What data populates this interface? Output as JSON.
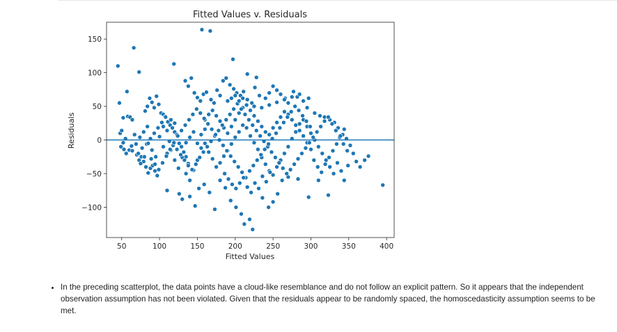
{
  "chart_data": {
    "type": "scatter",
    "title": "Fitted Values v. Residuals",
    "xlabel": "Fitted Values",
    "ylabel": "Residuals",
    "xlim": [
      30,
      410
    ],
    "ylim": [
      -145,
      175
    ],
    "xticks": [
      50,
      100,
      150,
      200,
      250,
      300,
      350,
      400
    ],
    "yticks": [
      -100,
      -50,
      0,
      50,
      100,
      150
    ],
    "xtick_labels": [
      "50",
      "100",
      "150",
      "200",
      "250",
      "300",
      "350",
      "400"
    ],
    "ytick_labels": [
      "−100",
      "−50",
      "0",
      "50",
      "100",
      "150"
    ],
    "reference_line_y": 0,
    "grid": false,
    "point_color": "#1f77b4",
    "line_color": "#1f77b4",
    "points": [
      [
        45,
        110
      ],
      [
        66,
        137
      ],
      [
        73,
        101
      ],
      [
        119,
        113
      ],
      [
        156,
        164
      ],
      [
        167,
        162
      ],
      [
        197,
        120
      ],
      [
        216,
        98
      ],
      [
        228,
        93
      ],
      [
        47,
        55
      ],
      [
        57,
        72
      ],
      [
        48,
        10
      ],
      [
        50,
        14
      ],
      [
        52,
        -4
      ],
      [
        55,
        2
      ],
      [
        49,
        -10
      ],
      [
        53,
        -14
      ],
      [
        56,
        -20
      ],
      [
        60,
        -15
      ],
      [
        63,
        -9
      ],
      [
        58,
        35
      ],
      [
        61,
        34
      ],
      [
        64,
        30
      ],
      [
        52,
        33
      ],
      [
        67,
        8
      ],
      [
        70,
        -22
      ],
      [
        73,
        -30
      ],
      [
        76,
        -25
      ],
      [
        79,
        -32
      ],
      [
        82,
        -40
      ],
      [
        85,
        -49
      ],
      [
        88,
        -42
      ],
      [
        91,
        -38
      ],
      [
        94,
        -46
      ],
      [
        97,
        -53
      ],
      [
        81,
        43
      ],
      [
        84,
        50
      ],
      [
        87,
        62
      ],
      [
        90,
        56
      ],
      [
        93,
        48
      ],
      [
        96,
        65
      ],
      [
        99,
        53
      ],
      [
        102,
        40
      ],
      [
        105,
        38
      ],
      [
        108,
        35
      ],
      [
        111,
        27
      ],
      [
        114,
        22
      ],
      [
        117,
        18
      ],
      [
        120,
        12
      ],
      [
        123,
        8
      ],
      [
        126,
        -5
      ],
      [
        129,
        -10
      ],
      [
        132,
        -18
      ],
      [
        135,
        -25
      ],
      [
        138,
        -35
      ],
      [
        110,
        -75
      ],
      [
        126,
        -80
      ],
      [
        130,
        -88
      ],
      [
        140,
        -84
      ],
      [
        147,
        -98
      ],
      [
        152,
        -72
      ],
      [
        159,
        -66
      ],
      [
        166,
        -78
      ],
      [
        173,
        -103
      ],
      [
        180,
        -60
      ],
      [
        187,
        -71
      ],
      [
        194,
        -90
      ],
      [
        201,
        -100
      ],
      [
        208,
        -110
      ],
      [
        212,
        -125
      ],
      [
        219,
        -118
      ],
      [
        223,
        -133
      ],
      [
        236,
        -86
      ],
      [
        244,
        -100
      ],
      [
        250,
        -92
      ],
      [
        256,
        -80
      ],
      [
        262,
        -60
      ],
      [
        270,
        -55
      ],
      [
        283,
        -58
      ],
      [
        297,
        -85
      ],
      [
        310,
        -60
      ],
      [
        323,
        -82
      ],
      [
        134,
        88
      ],
      [
        138,
        80
      ],
      [
        142,
        92
      ],
      [
        146,
        70
      ],
      [
        150,
        63
      ],
      [
        154,
        58
      ],
      [
        158,
        68
      ],
      [
        162,
        71
      ],
      [
        168,
        60
      ],
      [
        172,
        55
      ],
      [
        176,
        74
      ],
      [
        180,
        66
      ],
      [
        184,
        88
      ],
      [
        188,
        92
      ],
      [
        193,
        82
      ],
      [
        198,
        76
      ],
      [
        202,
        70
      ],
      [
        207,
        66
      ],
      [
        211,
        72
      ],
      [
        216,
        60
      ],
      [
        222,
        55
      ],
      [
        226,
        78
      ],
      [
        232,
        66
      ],
      [
        240,
        62
      ],
      [
        245,
        70
      ],
      [
        250,
        80
      ],
      [
        255,
        74
      ],
      [
        260,
        68
      ],
      [
        266,
        62
      ],
      [
        270,
        55
      ],
      [
        277,
        72
      ],
      [
        282,
        64
      ],
      [
        290,
        58
      ],
      [
        297,
        62
      ],
      [
        305,
        40
      ],
      [
        312,
        36
      ],
      [
        318,
        34
      ],
      [
        325,
        30
      ],
      [
        331,
        26
      ],
      [
        336,
        18
      ],
      [
        342,
        8
      ],
      [
        347,
        2
      ],
      [
        352,
        -8
      ],
      [
        356,
        -20
      ],
      [
        360,
        -32
      ],
      [
        365,
        -40
      ],
      [
        371,
        -30
      ],
      [
        376,
        -24
      ],
      [
        340,
        -46
      ],
      [
        344,
        -60
      ],
      [
        395,
        -67
      ],
      [
        100,
        5
      ],
      [
        105,
        -10
      ],
      [
        110,
        -20
      ],
      [
        115,
        -15
      ],
      [
        120,
        -30
      ],
      [
        125,
        -42
      ],
      [
        130,
        -26
      ],
      [
        135,
        -50
      ],
      [
        140,
        -60
      ],
      [
        145,
        -45
      ],
      [
        150,
        -30
      ],
      [
        155,
        -12
      ],
      [
        160,
        -5
      ],
      [
        165,
        -18
      ],
      [
        170,
        -28
      ],
      [
        175,
        -40
      ],
      [
        180,
        -34
      ],
      [
        185,
        -24
      ],
      [
        190,
        -16
      ],
      [
        195,
        -6
      ],
      [
        200,
        4
      ],
      [
        205,
        12
      ],
      [
        210,
        22
      ],
      [
        215,
        18
      ],
      [
        220,
        6
      ],
      [
        225,
        -4
      ],
      [
        230,
        -14
      ],
      [
        235,
        -26
      ],
      [
        240,
        -36
      ],
      [
        245,
        -46
      ],
      [
        250,
        -52
      ],
      [
        255,
        -40
      ],
      [
        260,
        -30
      ],
      [
        265,
        -20
      ],
      [
        270,
        -10
      ],
      [
        275,
        2
      ],
      [
        280,
        12
      ],
      [
        285,
        24
      ],
      [
        290,
        30
      ],
      [
        295,
        20
      ],
      [
        300,
        10
      ],
      [
        305,
        0
      ],
      [
        310,
        -10
      ],
      [
        315,
        -20
      ],
      [
        320,
        -30
      ],
      [
        325,
        -40
      ],
      [
        330,
        -50
      ],
      [
        335,
        -34
      ],
      [
        160,
        30
      ],
      [
        165,
        38
      ],
      [
        170,
        44
      ],
      [
        175,
        36
      ],
      [
        180,
        28
      ],
      [
        185,
        18
      ],
      [
        190,
        10
      ],
      [
        195,
        20
      ],
      [
        200,
        30
      ],
      [
        205,
        40
      ],
      [
        210,
        48
      ],
      [
        215,
        52
      ],
      [
        220,
        44
      ],
      [
        225,
        36
      ],
      [
        230,
        28
      ],
      [
        235,
        20
      ],
      [
        240,
        12
      ],
      [
        245,
        8
      ],
      [
        250,
        18
      ],
      [
        255,
        26
      ],
      [
        260,
        34
      ],
      [
        265,
        42
      ],
      [
        270,
        38
      ],
      [
        275,
        30
      ],
      [
        280,
        22
      ],
      [
        285,
        14
      ],
      [
        290,
        6
      ],
      [
        295,
        -4
      ],
      [
        300,
        -14
      ],
      [
        72,
        -20
      ],
      [
        77,
        -12
      ],
      [
        83,
        -6
      ],
      [
        88,
        2
      ],
      [
        93,
        10
      ],
      [
        98,
        18
      ],
      [
        103,
        26
      ],
      [
        108,
        34
      ],
      [
        113,
        -2
      ],
      [
        118,
        -8
      ],
      [
        123,
        -14
      ],
      [
        128,
        -22
      ],
      [
        133,
        -30
      ],
      [
        138,
        -38
      ],
      [
        143,
        -44
      ],
      [
        148,
        -36
      ],
      [
        153,
        -26
      ],
      [
        158,
        -18
      ],
      [
        163,
        -10
      ],
      [
        168,
        -2
      ],
      [
        173,
        6
      ],
      [
        178,
        14
      ],
      [
        183,
        22
      ],
      [
        188,
        30
      ],
      [
        193,
        38
      ],
      [
        198,
        46
      ],
      [
        203,
        54
      ],
      [
        208,
        46
      ],
      [
        213,
        38
      ],
      [
        218,
        30
      ],
      [
        223,
        22
      ],
      [
        228,
        14
      ],
      [
        233,
        6
      ],
      [
        238,
        -2
      ],
      [
        243,
        -10
      ],
      [
        248,
        -18
      ],
      [
        253,
        -26
      ],
      [
        258,
        -34
      ],
      [
        263,
        -42
      ],
      [
        268,
        -50
      ],
      [
        273,
        -44
      ],
      [
        278,
        -36
      ],
      [
        283,
        -28
      ],
      [
        288,
        -20
      ],
      [
        293,
        -12
      ],
      [
        298,
        -4
      ],
      [
        303,
        4
      ],
      [
        308,
        12
      ],
      [
        313,
        20
      ],
      [
        318,
        28
      ],
      [
        323,
        34
      ],
      [
        328,
        24
      ],
      [
        333,
        14
      ],
      [
        338,
        4
      ],
      [
        343,
        -6
      ],
      [
        348,
        -16
      ],
      [
        64,
        -16
      ],
      [
        69,
        -6
      ],
      [
        74,
        4
      ],
      [
        79,
        12
      ],
      [
        84,
        20
      ],
      [
        89,
        -28
      ],
      [
        94,
        -36
      ],
      [
        99,
        -44
      ],
      [
        104,
        -34
      ],
      [
        109,
        -24
      ],
      [
        114,
        -14
      ],
      [
        119,
        -4
      ],
      [
        124,
        6
      ],
      [
        129,
        14
      ],
      [
        134,
        22
      ],
      [
        139,
        30
      ],
      [
        144,
        38
      ],
      [
        149,
        46
      ],
      [
        154,
        40
      ],
      [
        159,
        32
      ],
      [
        164,
        24
      ],
      [
        169,
        16
      ],
      [
        174,
        8
      ],
      [
        179,
        0
      ],
      [
        184,
        -8
      ],
      [
        189,
        -16
      ],
      [
        194,
        -24
      ],
      [
        199,
        -32
      ],
      [
        204,
        -40
      ],
      [
        209,
        -48
      ],
      [
        214,
        -56
      ],
      [
        219,
        -46
      ],
      [
        224,
        -38
      ],
      [
        229,
        -30
      ],
      [
        234,
        -22
      ],
      [
        239,
        -14
      ],
      [
        244,
        -6
      ],
      [
        249,
        2
      ],
      [
        254,
        10
      ],
      [
        259,
        18
      ],
      [
        264,
        26
      ],
      [
        269,
        34
      ],
      [
        274,
        42
      ],
      [
        279,
        50
      ],
      [
        284,
        44
      ],
      [
        289,
        36
      ],
      [
        294,
        28
      ],
      [
        299,
        20
      ],
      [
        304,
        -30
      ],
      [
        309,
        -40
      ],
      [
        314,
        -48
      ],
      [
        319,
        -36
      ],
      [
        324,
        -26
      ],
      [
        329,
        -16
      ],
      [
        334,
        -6
      ],
      [
        339,
        6
      ],
      [
        344,
        16
      ],
      [
        349,
        -38
      ],
      [
        190,
        58
      ],
      [
        195,
        62
      ],
      [
        200,
        66
      ],
      [
        205,
        58
      ],
      [
        210,
        62
      ],
      [
        225,
        50
      ],
      [
        235,
        48
      ],
      [
        245,
        52
      ],
      [
        255,
        56
      ],
      [
        265,
        60
      ],
      [
        275,
        64
      ],
      [
        285,
        68
      ],
      [
        295,
        48
      ],
      [
        186,
        -50
      ],
      [
        191,
        -58
      ],
      [
        196,
        -66
      ],
      [
        201,
        -72
      ],
      [
        206,
        -64
      ],
      [
        211,
        -56
      ],
      [
        216,
        -70
      ],
      [
        221,
        -78
      ],
      [
        226,
        -64
      ],
      [
        231,
        -72
      ],
      [
        236,
        -54
      ],
      [
        241,
        -62
      ],
      [
        246,
        -48
      ],
      [
        150,
        -5
      ],
      [
        155,
        8
      ],
      [
        160,
        16
      ],
      [
        145,
        12
      ],
      [
        140,
        4
      ],
      [
        135,
        -4
      ],
      [
        120,
        25
      ],
      [
        115,
        30
      ],
      [
        110,
        14
      ],
      [
        105,
        20
      ],
      [
        95,
        -25
      ],
      [
        90,
        -15
      ],
      [
        85,
        -5
      ],
      [
        80,
        -25
      ],
      [
        75,
        -35
      ]
    ]
  },
  "note": {
    "text": "In the preceding scatterplot, the data points have a cloud-like resemblance and do not follow an explicit pattern. So it appears that the independent observation assumption has not been violated. Given that the residuals appear to be randomly spaced, the homoscedasticity assumption seems to be met."
  }
}
